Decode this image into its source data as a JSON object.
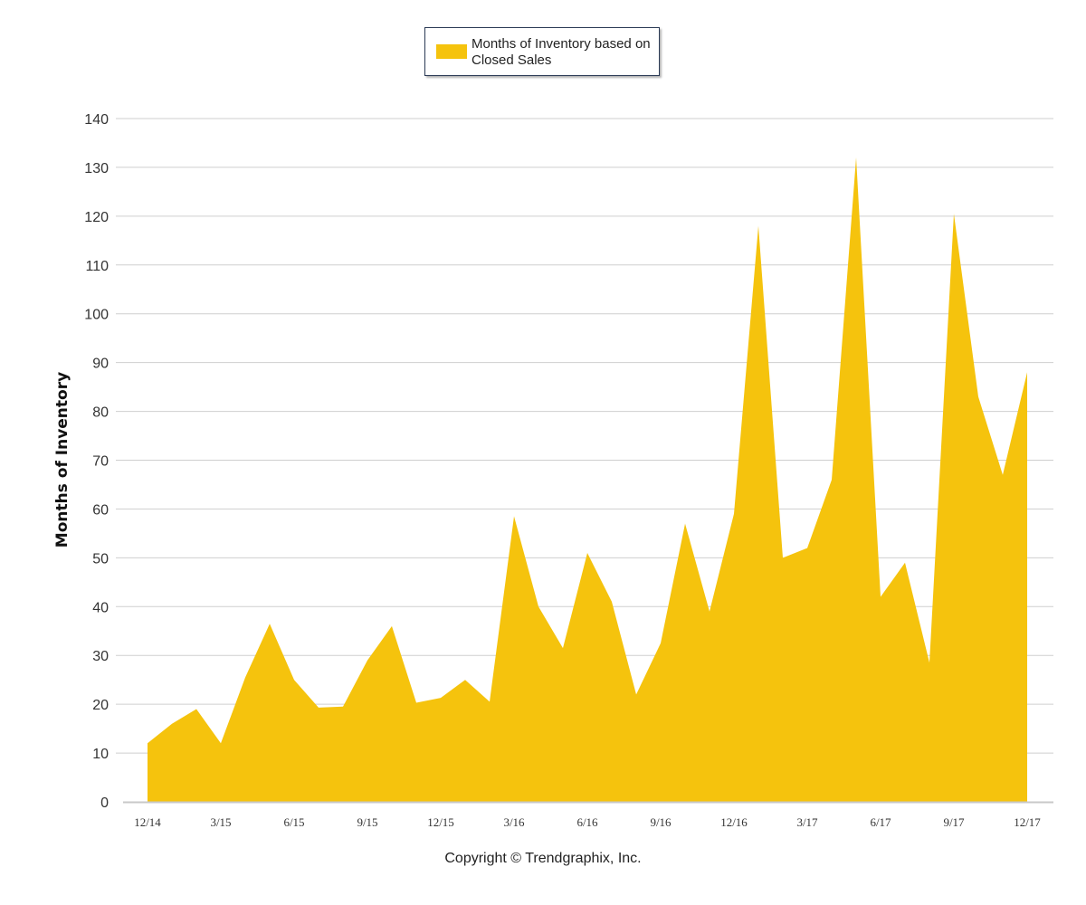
{
  "chart_data": {
    "type": "area",
    "legend": {
      "label": "Months of Inventory based on Closed Sales",
      "placement": "top-center"
    },
    "ylabel": "Months of Inventory",
    "xlabel": "",
    "ylim": [
      0,
      140
    ],
    "yticks": [
      0,
      10,
      20,
      30,
      40,
      50,
      60,
      70,
      80,
      90,
      100,
      110,
      120,
      130,
      140
    ],
    "xticks": [
      "12/14",
      "3/15",
      "6/15",
      "9/15",
      "12/15",
      "3/16",
      "6/16",
      "9/16",
      "12/16",
      "3/17",
      "6/17",
      "9/17",
      "12/17"
    ],
    "grid": true,
    "color": "#f5c30d",
    "series": [
      {
        "values": [
          12,
          16,
          19,
          12,
          25.5,
          36.5,
          25,
          19.3,
          19.5,
          29,
          36,
          20.3,
          21.3,
          25,
          20.5,
          58.5,
          40,
          31.5,
          51,
          41,
          22,
          32.5,
          57,
          39,
          59,
          118,
          50,
          52,
          66,
          132,
          42,
          49,
          28.5,
          120.5,
          83,
          67,
          88
        ]
      }
    ]
  },
  "footer": {
    "copyright": "Copyright © Trendgraphix, Inc."
  }
}
